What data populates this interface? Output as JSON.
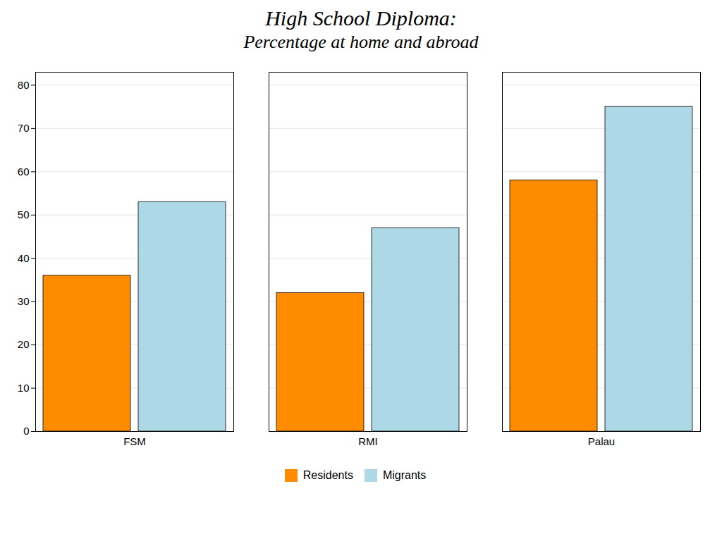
{
  "chart_data": {
    "type": "bar",
    "title": "High School Diploma:",
    "subtitle": "Percentage at home and abroad",
    "categories": [
      "FSM",
      "RMI",
      "Palau"
    ],
    "series": [
      {
        "name": "Residents",
        "color": "#FF8C00",
        "values": [
          36,
          32,
          58
        ]
      },
      {
        "name": "Migrants",
        "color": "#ADD8E6",
        "values": [
          53,
          47,
          75
        ]
      }
    ],
    "ylim": [
      0,
      83
    ],
    "yticks": [
      0,
      10,
      20,
      30,
      40,
      50,
      60,
      70,
      80
    ],
    "grid": true,
    "legend": "bottom"
  }
}
